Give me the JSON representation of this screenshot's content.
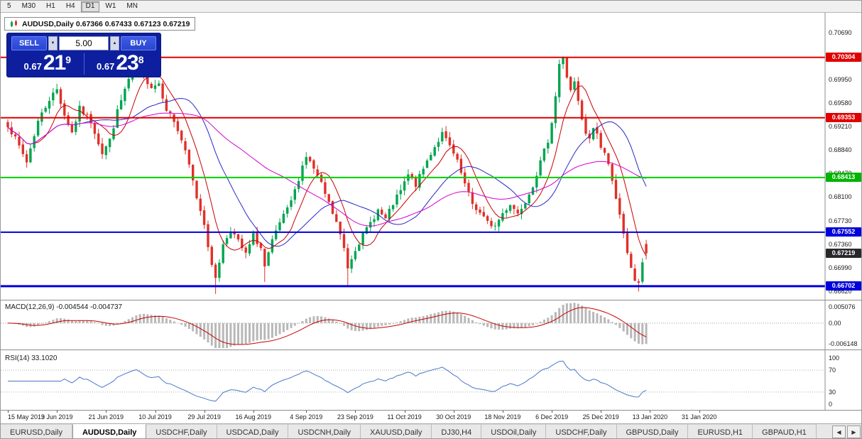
{
  "toolbar": {
    "timeframes": [
      "5",
      "M30",
      "H1",
      "H4",
      "D1",
      "W1",
      "MN"
    ],
    "active_timeframe": "D1"
  },
  "chart_window": {
    "title": "AUDUSD,Daily 0.67366 0.67433 0.67123 0.67219",
    "trade_panel": {
      "sell_label": "SELL",
      "buy_label": "BUY",
      "lot_size": "5.00",
      "spin_down_icon": "▼",
      "spin_up_icon": "▲",
      "sell_price": {
        "prefix": "0.67",
        "big": "21",
        "sup": "9"
      },
      "buy_price": {
        "prefix": "0.67",
        "big": "23",
        "sup": "8"
      }
    }
  },
  "chart_data": {
    "type": "candlestick",
    "symbol": "AUDUSD",
    "period": "Daily",
    "current_ohlc": {
      "open": 0.67366,
      "high": 0.67433,
      "low": 0.67123,
      "close": 0.67219
    },
    "price_axis_range": [
      0.665,
      0.7095
    ],
    "num_candles": 170,
    "close_anchors": [
      [
        0,
        0.6925
      ],
      [
        3,
        0.689
      ],
      [
        5,
        0.6866
      ],
      [
        8,
        0.693
      ],
      [
        11,
        0.6965
      ],
      [
        13,
        0.698
      ],
      [
        15,
        0.694
      ],
      [
        17,
        0.6912
      ],
      [
        19,
        0.695
      ],
      [
        22,
        0.693
      ],
      [
        25,
        0.688
      ],
      [
        27,
        0.69
      ],
      [
        29,
        0.6945
      ],
      [
        31,
        0.698
      ],
      [
        33,
        0.701
      ],
      [
        34,
        0.7028
      ],
      [
        36,
        0.7
      ],
      [
        38,
        0.6985
      ],
      [
        40,
        0.699
      ],
      [
        42,
        0.695
      ],
      [
        44,
        0.693
      ],
      [
        46,
        0.69
      ],
      [
        48,
        0.686
      ],
      [
        50,
        0.681
      ],
      [
        52,
        0.677
      ],
      [
        54,
        0.67
      ],
      [
        55,
        0.6685
      ],
      [
        57,
        0.6735
      ],
      [
        59,
        0.676
      ],
      [
        61,
        0.674
      ],
      [
        63,
        0.672
      ],
      [
        65,
        0.675
      ],
      [
        67,
        0.673
      ],
      [
        68,
        0.67
      ],
      [
        70,
        0.674
      ],
      [
        72,
        0.677
      ],
      [
        74,
        0.679
      ],
      [
        76,
        0.682
      ],
      [
        78,
        0.686
      ],
      [
        79,
        0.6875
      ],
      [
        81,
        0.6855
      ],
      [
        83,
        0.683
      ],
      [
        85,
        0.68
      ],
      [
        87,
        0.677
      ],
      [
        89,
        0.673
      ],
      [
        90,
        0.67
      ],
      [
        92,
        0.673
      ],
      [
        94,
        0.675
      ],
      [
        96,
        0.677
      ],
      [
        98,
        0.679
      ],
      [
        100,
        0.6775
      ],
      [
        102,
        0.68
      ],
      [
        104,
        0.682
      ],
      [
        106,
        0.6845
      ],
      [
        108,
        0.683
      ],
      [
        110,
        0.6855
      ],
      [
        112,
        0.688
      ],
      [
        114,
        0.69
      ],
      [
        115,
        0.691
      ],
      [
        117,
        0.689
      ],
      [
        119,
        0.6865
      ],
      [
        121,
        0.683
      ],
      [
        123,
        0.68
      ],
      [
        125,
        0.6785
      ],
      [
        127,
        0.677
      ],
      [
        129,
        0.6765
      ],
      [
        131,
        0.6785
      ],
      [
        133,
        0.68
      ],
      [
        135,
        0.6785
      ],
      [
        137,
        0.6805
      ],
      [
        139,
        0.683
      ],
      [
        141,
        0.6865
      ],
      [
        143,
        0.69
      ],
      [
        144,
        0.693
      ],
      [
        145,
        0.697
      ],
      [
        146,
        0.702
      ],
      [
        147,
        0.7028
      ],
      [
        148,
        0.7
      ],
      [
        149,
        0.698
      ],
      [
        150,
        0.699
      ],
      [
        151,
        0.696
      ],
      [
        152,
        0.693
      ],
      [
        153,
        0.691
      ],
      [
        154,
        0.69
      ],
      [
        155,
        0.692
      ],
      [
        156,
        0.691
      ],
      [
        157,
        0.689
      ],
      [
        158,
        0.688
      ],
      [
        159,
        0.686
      ],
      [
        160,
        0.684
      ],
      [
        161,
        0.681
      ],
      [
        162,
        0.678
      ],
      [
        163,
        0.675
      ],
      [
        164,
        0.672
      ],
      [
        165,
        0.67
      ],
      [
        166,
        0.668
      ],
      [
        167,
        0.6672
      ],
      [
        168,
        0.671
      ],
      [
        169,
        0.67219
      ]
    ],
    "wick_highs": [
      [
        34,
        0.7048
      ],
      [
        147,
        0.7032
      ]
    ],
    "wick_lows": [
      [
        55,
        0.6658
      ],
      [
        68,
        0.6677
      ],
      [
        90,
        0.667
      ],
      [
        167,
        0.6662
      ]
    ],
    "horizontal_lines": [
      {
        "price": 0.70304,
        "color": "#e00000",
        "width": 2
      },
      {
        "price": 0.69353,
        "color": "#e00000",
        "width": 2
      },
      {
        "price": 0.68413,
        "color": "#00d200",
        "width": 2
      },
      {
        "price": 0.67552,
        "color": "#0000e0",
        "width": 2
      },
      {
        "price": 0.66702,
        "color": "#0000e0",
        "width": 3
      }
    ],
    "moving_averages": [
      {
        "period": 8,
        "color": "#c80000"
      },
      {
        "period": 20,
        "color": "#2828c8"
      },
      {
        "period": 45,
        "color": "#d400d4"
      }
    ],
    "candle_up_color": "#00a550",
    "candle_down_color": "#e03028"
  },
  "price_axis": {
    "ticks": [
      "0.70690",
      "0.70320",
      "0.69950",
      "0.69580",
      "0.69210",
      "0.68840",
      "0.68470",
      "0.68100",
      "0.67730",
      "0.67360",
      "0.66990",
      "0.66620"
    ],
    "badges": [
      {
        "text": "0.70304",
        "price": 0.70304,
        "color": "#e00000",
        "name": "resistance-level-badge"
      },
      {
        "text": "0.69353",
        "price": 0.69353,
        "color": "#e00000",
        "name": "resistance-level-badge"
      },
      {
        "text": "0.68413",
        "price": 0.68413,
        "color": "#00b400",
        "name": "support-level-badge"
      },
      {
        "text": "0.67552",
        "price": 0.67552,
        "color": "#0000dc",
        "name": "support-level-badge"
      },
      {
        "text": "0.67219",
        "price": 0.67219,
        "color": "#28282c",
        "name": "current-price-badge"
      },
      {
        "text": "0.66702",
        "price": 0.66702,
        "color": "#0000dc",
        "name": "support-level-badge"
      }
    ]
  },
  "macd_panel": {
    "label": "MACD(12,26,9) -0.004544 -0.004737",
    "fast": 12,
    "slow": 26,
    "signal": 9,
    "value": -0.004544,
    "signal_value": -0.004737,
    "axis_max": 0.005076,
    "axis_min": -0.006148,
    "axis_labels": [
      "0.005076",
      "0.00",
      "-0.006148"
    ],
    "histogram_color": "#b8b8b8",
    "signal_color": "#c80000"
  },
  "rsi_panel": {
    "label": "RSI(14) 33.1020",
    "period": 14,
    "value": 33.102,
    "levels": [
      70,
      30
    ],
    "axis_labels": [
      "100",
      "70",
      "30",
      "0"
    ],
    "line_color": "#4878c8"
  },
  "time_axis": {
    "labels": [
      {
        "text": "15 May 2019",
        "day": 0
      },
      {
        "text": "3 Jun 2019",
        "day": 13
      },
      {
        "text": "21 Jun 2019",
        "day": 26
      },
      {
        "text": "10 Jul 2019",
        "day": 39
      },
      {
        "text": "29 Jul 2019",
        "day": 52
      },
      {
        "text": "16 Aug 2019",
        "day": 65
      },
      {
        "text": "4 Sep 2019",
        "day": 79
      },
      {
        "text": "23 Sep 2019",
        "day": 92
      },
      {
        "text": "11 Oct 2019",
        "day": 105
      },
      {
        "text": "30 Oct 2019",
        "day": 118
      },
      {
        "text": "18 Nov 2019",
        "day": 131
      },
      {
        "text": "6 Dec 2019",
        "day": 144
      },
      {
        "text": "25 Dec 2019",
        "day": 157
      },
      {
        "text": "13 Jan 2020",
        "day": 170
      },
      {
        "text": "31 Jan 2020",
        "day": 183
      }
    ]
  },
  "tab_bar": {
    "tabs": [
      "EURUSD,Daily",
      "AUDUSD,Daily",
      "USDCHF,Daily",
      "USDCAD,Daily",
      "USDCNH,Daily",
      "XAUUSD,Daily",
      "DJ30,H4",
      "USDOil,Daily",
      "USDCHF,Daily",
      "GBPUSD,Daily",
      "EURUSD,H1",
      "GBPAUD,H1"
    ],
    "active_index": 1,
    "scroll_left_icon": "◀",
    "scroll_right_icon": "▶"
  }
}
